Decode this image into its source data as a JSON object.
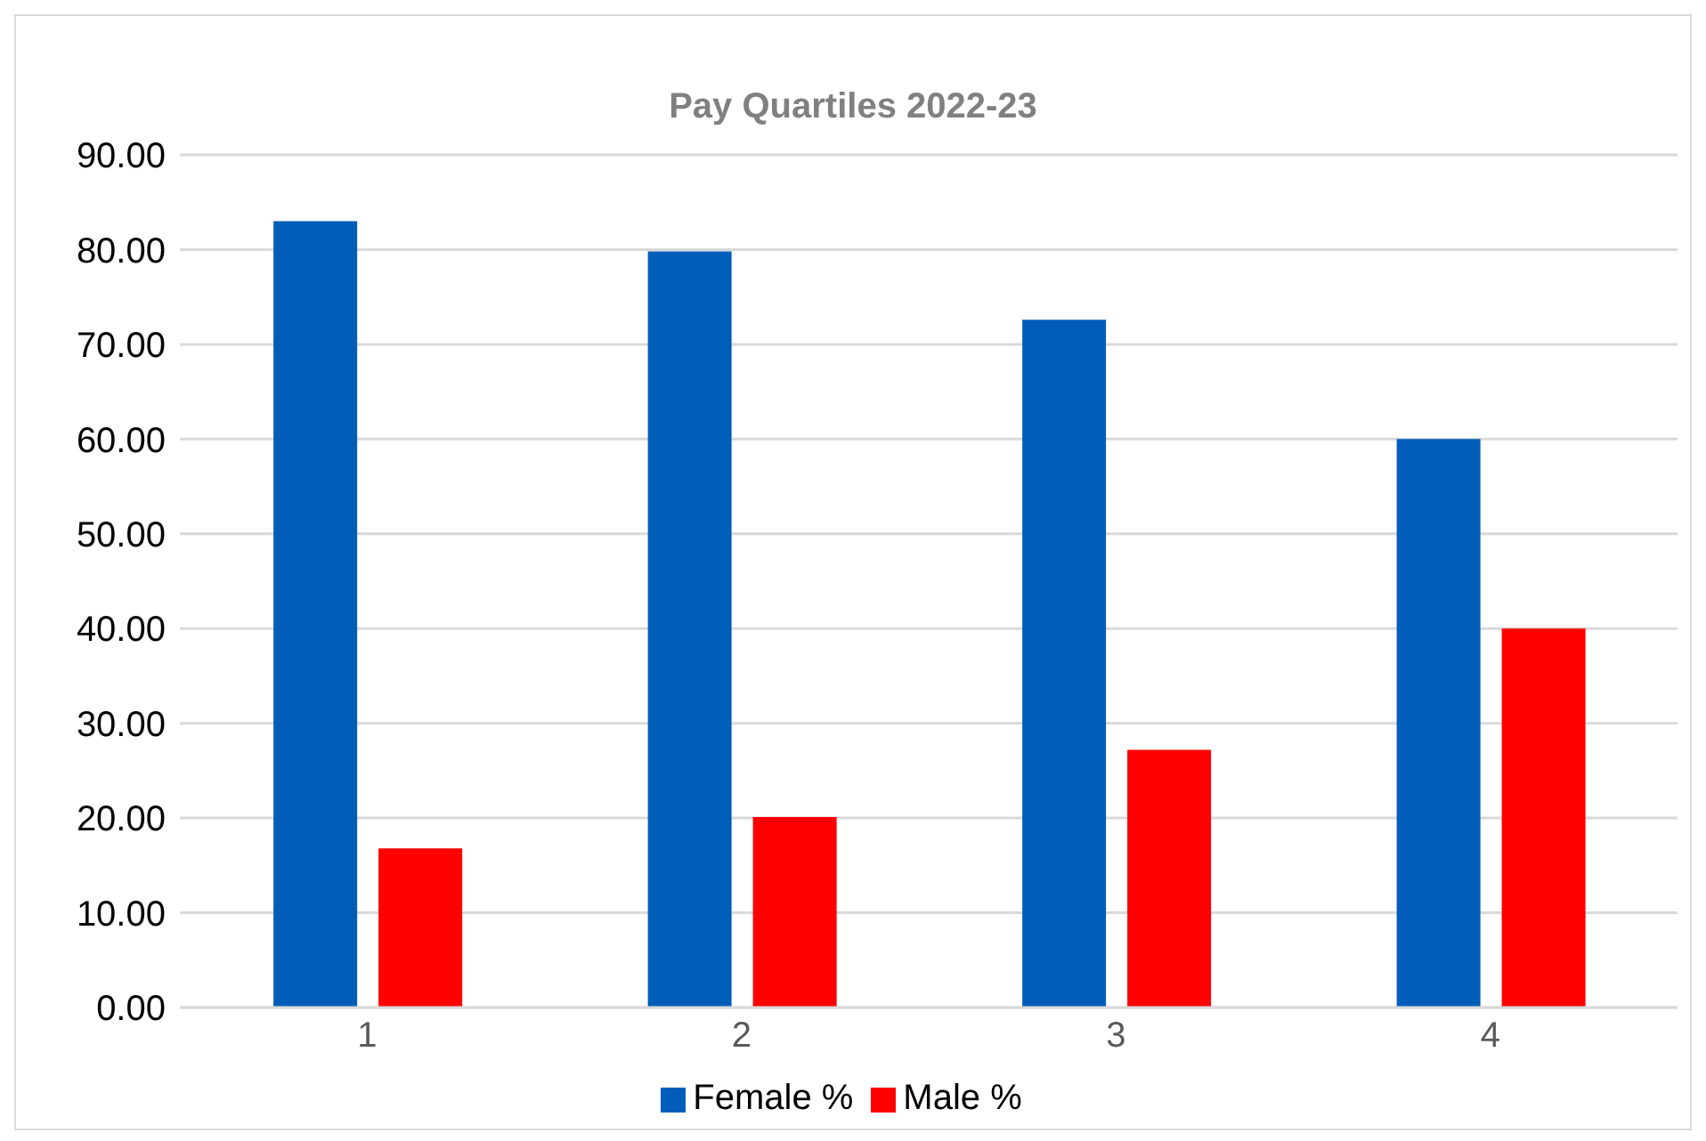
{
  "chart_data": {
    "type": "bar",
    "title": "Pay Quartiles 2022-23",
    "categories": [
      "1",
      "2",
      "3",
      "4"
    ],
    "series": [
      {
        "name": "Female %",
        "color": "#005eb8",
        "values": [
          83.0,
          79.8,
          72.6,
          60.0
        ]
      },
      {
        "name": "Male %",
        "color": "#ff0000",
        "values": [
          16.8,
          20.1,
          27.2,
          40.0
        ]
      }
    ],
    "ylim": [
      0,
      90
    ],
    "yticks": [
      {
        "value": 0,
        "label": "0.00"
      },
      {
        "value": 10,
        "label": "10.00"
      },
      {
        "value": 20,
        "label": "20.00"
      },
      {
        "value": 30,
        "label": "30.00"
      },
      {
        "value": 40,
        "label": "40.00"
      },
      {
        "value": 50,
        "label": "50.00"
      },
      {
        "value": 60,
        "label": "60.00"
      },
      {
        "value": 70,
        "label": "70.00"
      },
      {
        "value": 80,
        "label": "80.00"
      },
      {
        "value": 90,
        "label": "90.00"
      }
    ],
    "grid": "y",
    "legend": "bottom"
  }
}
